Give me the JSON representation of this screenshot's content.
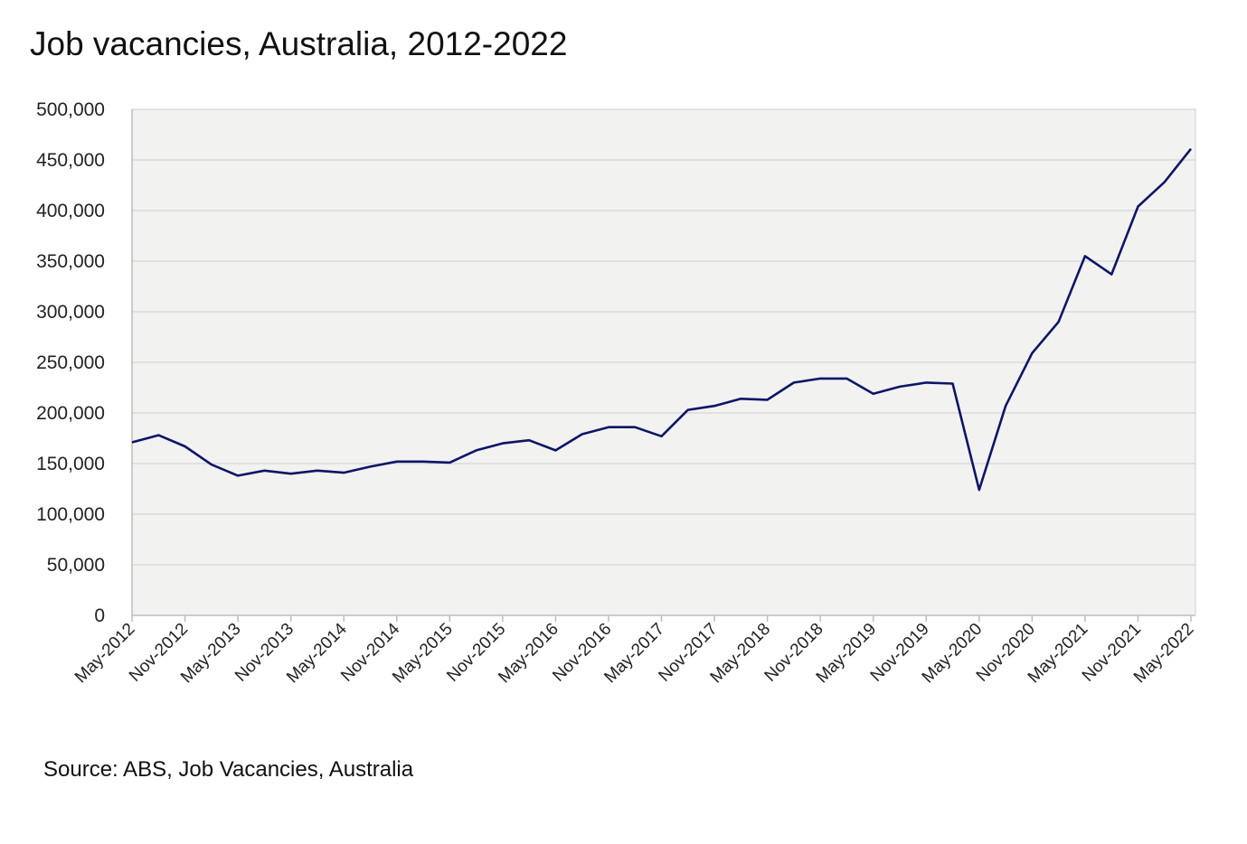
{
  "chart_data": {
    "type": "line",
    "title": "Job vacancies, Australia, 2012-2022",
    "source": "Source: ABS, Job Vacancies, Australia",
    "xlabel": "",
    "ylabel": "",
    "ylim": [
      0,
      500000
    ],
    "yticks": [
      0,
      50000,
      100000,
      150000,
      200000,
      250000,
      300000,
      350000,
      400000,
      450000,
      500000
    ],
    "ytick_labels": [
      "0",
      "50,000",
      "100,000",
      "150,000",
      "200,000",
      "250,000",
      "300,000",
      "350,000",
      "400,000",
      "450,000",
      "500,000"
    ],
    "xtick_labels": [
      "May-2012",
      "Nov-2012",
      "May-2013",
      "Nov-2013",
      "May-2014",
      "Nov-2014",
      "May-2015",
      "Nov-2015",
      "May-2016",
      "Nov-2016",
      "May-2017",
      "Nov-2017",
      "May-2018",
      "Nov-2018",
      "May-2019",
      "Nov-2019",
      "May-2020",
      "Nov-2020",
      "May-2021",
      "Nov-2021",
      "May-2022"
    ],
    "grid": true,
    "series": [
      {
        "name": "Job vacancies",
        "color": "#0d1566",
        "frequency": "quarterly",
        "values": [
          171000,
          178000,
          167000,
          149000,
          138000,
          143000,
          140000,
          143000,
          141000,
          147000,
          152000,
          152000,
          151000,
          163000,
          170000,
          173000,
          163000,
          179000,
          186000,
          186000,
          177000,
          203000,
          207000,
          214000,
          213000,
          230000,
          234000,
          234000,
          219000,
          226000,
          230000,
          229000,
          124000,
          207000,
          259000,
          290000,
          355000,
          337000,
          404000,
          428000,
          461000
        ]
      }
    ]
  }
}
